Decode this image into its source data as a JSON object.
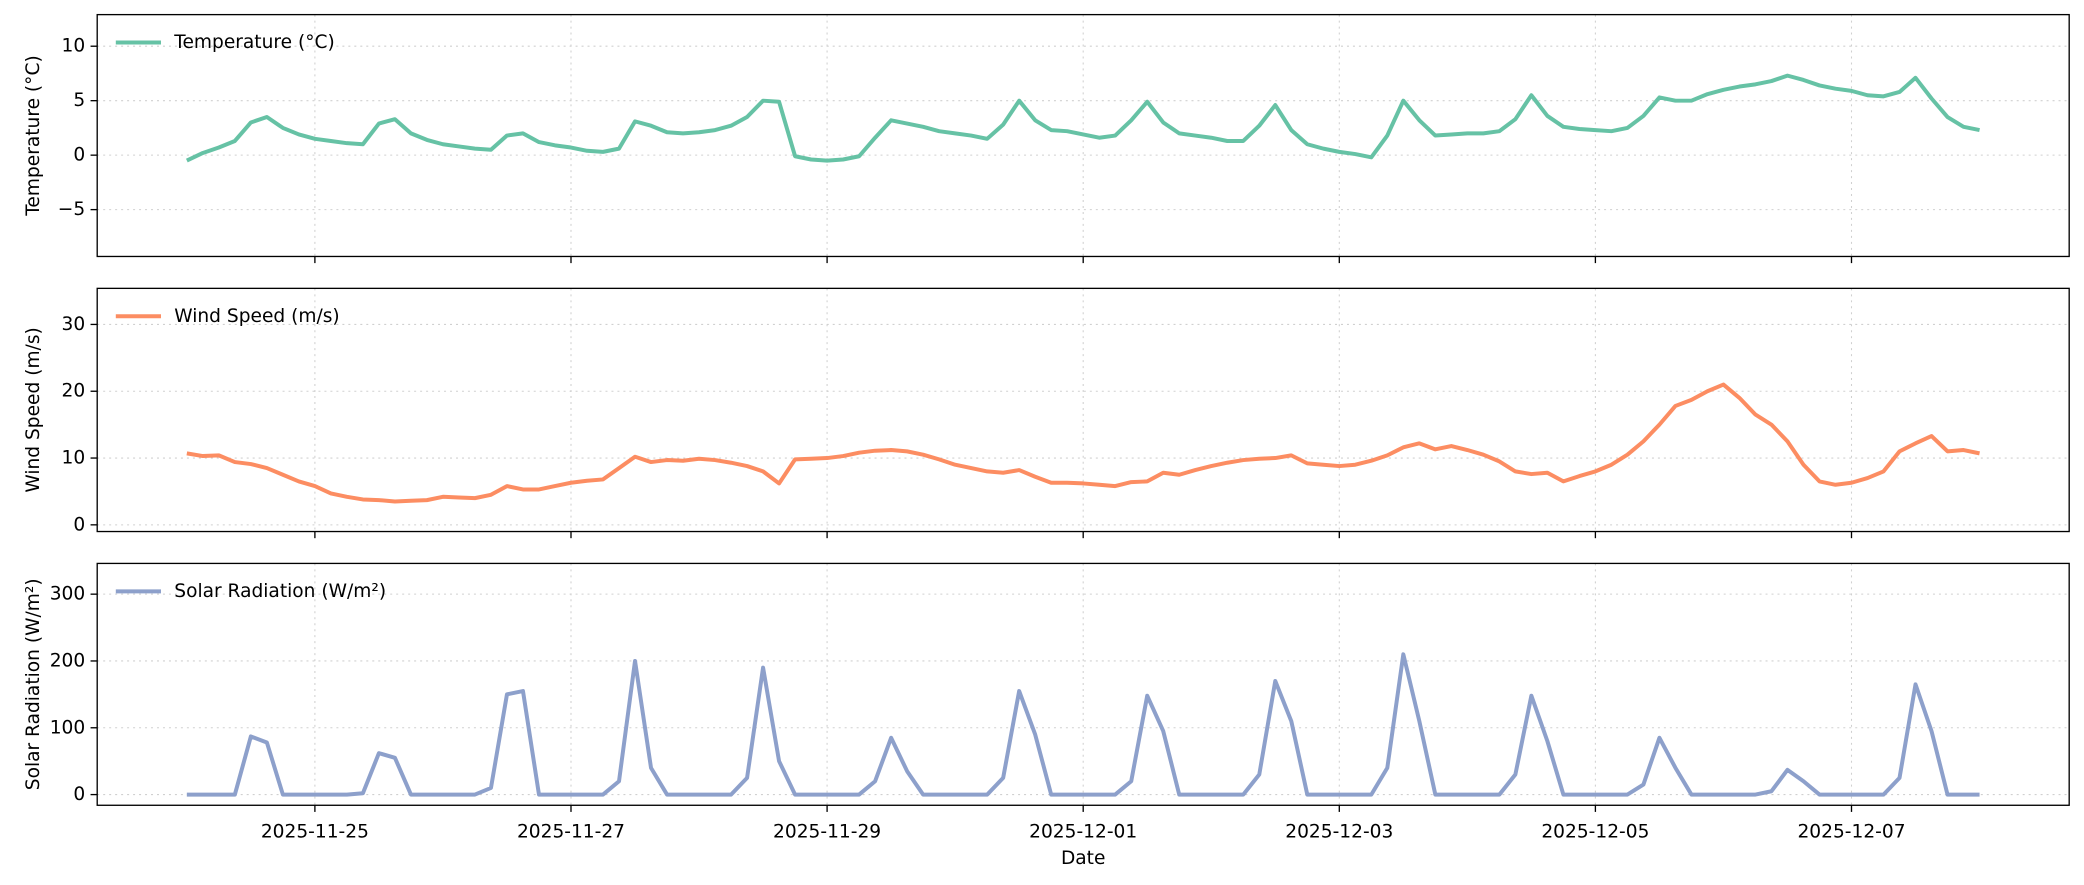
{
  "chart_data": [
    {
      "type": "line",
      "y_label": "Temperature (°C)",
      "legend": "upper left",
      "grid": true,
      "x": [
        "2025-11-24T00:00",
        "2025-11-24T03:00",
        "2025-11-24T06:00",
        "2025-11-24T09:00",
        "2025-11-24T12:00",
        "2025-11-24T15:00",
        "2025-11-24T18:00",
        "2025-11-24T21:00",
        "2025-11-25T00:00",
        "2025-11-25T03:00",
        "2025-11-25T06:00",
        "2025-11-25T09:00",
        "2025-11-25T12:00",
        "2025-11-25T15:00",
        "2025-11-25T18:00",
        "2025-11-25T21:00",
        "2025-11-26T00:00",
        "2025-11-26T03:00",
        "2025-11-26T06:00",
        "2025-11-26T09:00",
        "2025-11-26T12:00",
        "2025-11-26T15:00",
        "2025-11-26T18:00",
        "2025-11-26T21:00",
        "2025-11-27T00:00",
        "2025-11-27T03:00",
        "2025-11-27T06:00",
        "2025-11-27T09:00",
        "2025-11-27T12:00",
        "2025-11-27T15:00",
        "2025-11-27T18:00",
        "2025-11-27T21:00",
        "2025-11-28T00:00",
        "2025-11-28T03:00",
        "2025-11-28T06:00",
        "2025-11-28T09:00",
        "2025-11-28T12:00",
        "2025-11-28T15:00",
        "2025-11-28T18:00",
        "2025-11-28T21:00",
        "2025-11-29T00:00",
        "2025-11-29T03:00",
        "2025-11-29T06:00",
        "2025-11-29T09:00",
        "2025-11-29T12:00",
        "2025-11-29T15:00",
        "2025-11-29T18:00",
        "2025-11-29T21:00",
        "2025-11-30T00:00",
        "2025-11-30T03:00",
        "2025-11-30T06:00",
        "2025-11-30T09:00",
        "2025-11-30T12:00",
        "2025-11-30T15:00",
        "2025-11-30T18:00",
        "2025-11-30T21:00",
        "2025-12-01T00:00",
        "2025-12-01T03:00",
        "2025-12-01T06:00",
        "2025-12-01T09:00",
        "2025-12-01T12:00",
        "2025-12-01T15:00",
        "2025-12-01T18:00",
        "2025-12-01T21:00",
        "2025-12-02T00:00",
        "2025-12-02T03:00",
        "2025-12-02T06:00",
        "2025-12-02T09:00",
        "2025-12-02T12:00",
        "2025-12-02T15:00",
        "2025-12-02T18:00",
        "2025-12-02T21:00",
        "2025-12-03T00:00",
        "2025-12-03T03:00",
        "2025-12-03T06:00",
        "2025-12-03T09:00",
        "2025-12-03T12:00",
        "2025-12-03T15:00",
        "2025-12-03T18:00",
        "2025-12-03T21:00",
        "2025-12-04T00:00",
        "2025-12-04T03:00",
        "2025-12-04T06:00",
        "2025-12-04T09:00",
        "2025-12-04T12:00",
        "2025-12-04T15:00",
        "2025-12-04T18:00",
        "2025-12-04T21:00",
        "2025-12-05T00:00",
        "2025-12-05T03:00",
        "2025-12-05T06:00",
        "2025-12-05T09:00",
        "2025-12-05T12:00",
        "2025-12-05T15:00",
        "2025-12-05T18:00",
        "2025-12-05T21:00",
        "2025-12-06T00:00",
        "2025-12-06T03:00",
        "2025-12-06T06:00",
        "2025-12-06T09:00",
        "2025-12-06T12:00",
        "2025-12-06T15:00",
        "2025-12-06T18:00",
        "2025-12-06T21:00",
        "2025-12-07T00:00",
        "2025-12-07T03:00",
        "2025-12-07T06:00",
        "2025-12-07T09:00",
        "2025-12-07T12:00",
        "2025-12-07T15:00",
        "2025-12-07T18:00",
        "2025-12-07T21:00",
        "2025-12-08T00:00"
      ],
      "xlim": [
        "2025-11-23T07:12",
        "2025-12-08T16:48"
      ],
      "xticks": [
        "2025-11-25",
        "2025-11-27",
        "2025-11-29",
        "2025-12-01",
        "2025-12-03",
        "2025-12-05",
        "2025-12-07"
      ],
      "ylim": [
        -9.3,
        12.9
      ],
      "yticks": [
        {
          "value": -5,
          "label": "−5"
        },
        0,
        5,
        10
      ],
      "series": [
        {
          "name": "Temperature (°C)",
          "color": "#66c2a5",
          "values": [
            -0.5,
            0.2,
            0.7,
            1.3,
            3.0,
            3.5,
            2.5,
            1.9,
            1.5,
            1.3,
            1.1,
            1.0,
            2.9,
            3.3,
            2.0,
            1.4,
            1.0,
            0.8,
            0.6,
            0.5,
            1.8,
            2.0,
            1.2,
            0.9,
            0.7,
            0.4,
            0.3,
            0.6,
            3.1,
            2.7,
            2.1,
            2.0,
            2.1,
            2.3,
            2.7,
            3.5,
            5.0,
            4.9,
            -0.1,
            -0.4,
            -0.5,
            -0.4,
            -0.1,
            1.6,
            3.2,
            2.9,
            2.6,
            2.2,
            2.0,
            1.8,
            1.5,
            2.8,
            5.0,
            3.2,
            2.3,
            2.2,
            1.9,
            1.6,
            1.8,
            3.2,
            4.9,
            3.0,
            2.0,
            1.8,
            1.6,
            1.3,
            1.3,
            2.7,
            4.6,
            2.3,
            1.0,
            0.6,
            0.3,
            0.1,
            -0.2,
            1.8,
            5.0,
            3.2,
            1.8,
            1.9,
            2.0,
            2.0,
            2.2,
            3.3,
            5.5,
            3.6,
            2.6,
            2.4,
            2.3,
            2.2,
            2.5,
            3.6,
            5.3,
            5.0,
            5.0,
            5.6,
            6.0,
            6.3,
            6.5,
            6.8,
            7.3,
            6.9,
            6.4,
            6.1,
            5.9,
            5.5,
            5.4,
            5.8,
            7.1,
            5.2,
            3.5,
            2.6,
            2.3
          ]
        }
      ]
    },
    {
      "type": "line",
      "y_label": "Wind Speed (m/s)",
      "legend": "upper left",
      "grid": true,
      "x": [
        "2025-11-24T00:00",
        "2025-11-24T03:00",
        "2025-11-24T06:00",
        "2025-11-24T09:00",
        "2025-11-24T12:00",
        "2025-11-24T15:00",
        "2025-11-24T18:00",
        "2025-11-24T21:00",
        "2025-11-25T00:00",
        "2025-11-25T03:00",
        "2025-11-25T06:00",
        "2025-11-25T09:00",
        "2025-11-25T12:00",
        "2025-11-25T15:00",
        "2025-11-25T18:00",
        "2025-11-25T21:00",
        "2025-11-26T00:00",
        "2025-11-26T03:00",
        "2025-11-26T06:00",
        "2025-11-26T09:00",
        "2025-11-26T12:00",
        "2025-11-26T15:00",
        "2025-11-26T18:00",
        "2025-11-26T21:00",
        "2025-11-27T00:00",
        "2025-11-27T03:00",
        "2025-11-27T06:00",
        "2025-11-27T09:00",
        "2025-11-27T12:00",
        "2025-11-27T15:00",
        "2025-11-27T18:00",
        "2025-11-27T21:00",
        "2025-11-28T00:00",
        "2025-11-28T03:00",
        "2025-11-28T06:00",
        "2025-11-28T09:00",
        "2025-11-28T12:00",
        "2025-11-28T15:00",
        "2025-11-28T18:00",
        "2025-11-28T21:00",
        "2025-11-29T00:00",
        "2025-11-29T03:00",
        "2025-11-29T06:00",
        "2025-11-29T09:00",
        "2025-11-29T12:00",
        "2025-11-29T15:00",
        "2025-11-29T18:00",
        "2025-11-29T21:00",
        "2025-11-30T00:00",
        "2025-11-30T03:00",
        "2025-11-30T06:00",
        "2025-11-30T09:00",
        "2025-11-30T12:00",
        "2025-11-30T15:00",
        "2025-11-30T18:00",
        "2025-11-30T21:00",
        "2025-12-01T00:00",
        "2025-12-01T03:00",
        "2025-12-01T06:00",
        "2025-12-01T09:00",
        "2025-12-01T12:00",
        "2025-12-01T15:00",
        "2025-12-01T18:00",
        "2025-12-01T21:00",
        "2025-12-02T00:00",
        "2025-12-02T03:00",
        "2025-12-02T06:00",
        "2025-12-02T09:00",
        "2025-12-02T12:00",
        "2025-12-02T15:00",
        "2025-12-02T18:00",
        "2025-12-02T21:00",
        "2025-12-03T00:00",
        "2025-12-03T03:00",
        "2025-12-03T06:00",
        "2025-12-03T09:00",
        "2025-12-03T12:00",
        "2025-12-03T15:00",
        "2025-12-03T18:00",
        "2025-12-03T21:00",
        "2025-12-04T00:00",
        "2025-12-04T03:00",
        "2025-12-04T06:00",
        "2025-12-04T09:00",
        "2025-12-04T12:00",
        "2025-12-04T15:00",
        "2025-12-04T18:00",
        "2025-12-04T21:00",
        "2025-12-05T00:00",
        "2025-12-05T03:00",
        "2025-12-05T06:00",
        "2025-12-05T09:00",
        "2025-12-05T12:00",
        "2025-12-05T15:00",
        "2025-12-05T18:00",
        "2025-12-05T21:00",
        "2025-12-06T00:00",
        "2025-12-06T03:00",
        "2025-12-06T06:00",
        "2025-12-06T09:00",
        "2025-12-06T12:00",
        "2025-12-06T15:00",
        "2025-12-06T18:00",
        "2025-12-06T21:00",
        "2025-12-07T00:00",
        "2025-12-07T03:00",
        "2025-12-07T06:00",
        "2025-12-07T09:00",
        "2025-12-07T12:00",
        "2025-12-07T15:00",
        "2025-12-07T18:00",
        "2025-12-07T21:00",
        "2025-12-08T00:00"
      ],
      "xlim": [
        "2025-11-23T07:12",
        "2025-12-08T16:48"
      ],
      "xticks": [
        "2025-11-25",
        "2025-11-27",
        "2025-11-29",
        "2025-12-01",
        "2025-12-03",
        "2025-12-05",
        "2025-12-07"
      ],
      "ylim": [
        -1.0,
        35.4
      ],
      "yticks": [
        0,
        10,
        20,
        30
      ],
      "series": [
        {
          "name": "Wind Speed (m/s)",
          "color": "#fc8d62",
          "values": [
            10.7,
            10.3,
            10.4,
            9.4,
            9.1,
            8.5,
            7.5,
            6.5,
            5.8,
            4.7,
            4.2,
            3.8,
            3.7,
            3.5,
            3.6,
            3.7,
            4.2,
            4.1,
            4.0,
            4.5,
            5.8,
            5.3,
            5.3,
            5.8,
            6.3,
            6.6,
            6.8,
            8.5,
            10.2,
            9.4,
            9.7,
            9.6,
            9.9,
            9.7,
            9.3,
            8.8,
            8.0,
            6.2,
            9.8,
            9.9,
            10.0,
            10.3,
            10.8,
            11.1,
            11.2,
            11.0,
            10.5,
            9.8,
            9.0,
            8.5,
            8.0,
            7.8,
            8.2,
            7.2,
            6.3,
            6.3,
            6.2,
            6.0,
            5.8,
            6.4,
            6.5,
            7.8,
            7.5,
            8.2,
            8.8,
            9.3,
            9.7,
            9.9,
            10.0,
            10.4,
            9.2,
            9.0,
            8.8,
            9.0,
            9.6,
            10.4,
            11.6,
            12.2,
            11.3,
            11.8,
            11.2,
            10.5,
            9.5,
            8.0,
            7.6,
            7.8,
            6.5,
            7.3,
            8.0,
            9.0,
            10.5,
            12.5,
            15.0,
            17.8,
            18.7,
            20.0,
            21.0,
            19.0,
            16.5,
            15.0,
            12.5,
            9.0,
            6.5,
            6.0,
            6.3,
            7.0,
            8.0,
            11.0,
            12.2,
            13.3,
            11.0,
            11.2,
            10.7
          ]
        }
      ]
    },
    {
      "type": "line",
      "y_label": "Solar Radiation (W/m²)",
      "x_label": "Date",
      "legend": "upper left",
      "grid": true,
      "x": [
        "2025-11-24T00:00",
        "2025-11-24T03:00",
        "2025-11-24T06:00",
        "2025-11-24T09:00",
        "2025-11-24T12:00",
        "2025-11-24T15:00",
        "2025-11-24T18:00",
        "2025-11-24T21:00",
        "2025-11-25T00:00",
        "2025-11-25T03:00",
        "2025-11-25T06:00",
        "2025-11-25T09:00",
        "2025-11-25T12:00",
        "2025-11-25T15:00",
        "2025-11-25T18:00",
        "2025-11-25T21:00",
        "2025-11-26T00:00",
        "2025-11-26T03:00",
        "2025-11-26T06:00",
        "2025-11-26T09:00",
        "2025-11-26T12:00",
        "2025-11-26T15:00",
        "2025-11-26T18:00",
        "2025-11-26T21:00",
        "2025-11-27T00:00",
        "2025-11-27T03:00",
        "2025-11-27T06:00",
        "2025-11-27T09:00",
        "2025-11-27T12:00",
        "2025-11-27T15:00",
        "2025-11-27T18:00",
        "2025-11-27T21:00",
        "2025-11-28T00:00",
        "2025-11-28T03:00",
        "2025-11-28T06:00",
        "2025-11-28T09:00",
        "2025-11-28T12:00",
        "2025-11-28T15:00",
        "2025-11-28T18:00",
        "2025-11-28T21:00",
        "2025-11-29T00:00",
        "2025-11-29T03:00",
        "2025-11-29T06:00",
        "2025-11-29T09:00",
        "2025-11-29T12:00",
        "2025-11-29T15:00",
        "2025-11-29T18:00",
        "2025-11-29T21:00",
        "2025-11-30T00:00",
        "2025-11-30T03:00",
        "2025-11-30T06:00",
        "2025-11-30T09:00",
        "2025-11-30T12:00",
        "2025-11-30T15:00",
        "2025-11-30T18:00",
        "2025-11-30T21:00",
        "2025-12-01T00:00",
        "2025-12-01T03:00",
        "2025-12-01T06:00",
        "2025-12-01T09:00",
        "2025-12-01T12:00",
        "2025-12-01T15:00",
        "2025-12-01T18:00",
        "2025-12-01T21:00",
        "2025-12-02T00:00",
        "2025-12-02T03:00",
        "2025-12-02T06:00",
        "2025-12-02T09:00",
        "2025-12-02T12:00",
        "2025-12-02T15:00",
        "2025-12-02T18:00",
        "2025-12-02T21:00",
        "2025-12-03T00:00",
        "2025-12-03T03:00",
        "2025-12-03T06:00",
        "2025-12-03T09:00",
        "2025-12-03T12:00",
        "2025-12-03T15:00",
        "2025-12-03T18:00",
        "2025-12-03T21:00",
        "2025-12-04T00:00",
        "2025-12-04T03:00",
        "2025-12-04T06:00",
        "2025-12-04T09:00",
        "2025-12-04T12:00",
        "2025-12-04T15:00",
        "2025-12-04T18:00",
        "2025-12-04T21:00",
        "2025-12-05T00:00",
        "2025-12-05T03:00",
        "2025-12-05T06:00",
        "2025-12-05T09:00",
        "2025-12-05T12:00",
        "2025-12-05T15:00",
        "2025-12-05T18:00",
        "2025-12-05T21:00",
        "2025-12-06T00:00",
        "2025-12-06T03:00",
        "2025-12-06T06:00",
        "2025-12-06T09:00",
        "2025-12-06T12:00",
        "2025-12-06T15:00",
        "2025-12-06T18:00",
        "2025-12-06T21:00",
        "2025-12-07T00:00",
        "2025-12-07T03:00",
        "2025-12-07T06:00",
        "2025-12-07T09:00",
        "2025-12-07T12:00",
        "2025-12-07T15:00",
        "2025-12-07T18:00",
        "2025-12-07T21:00",
        "2025-12-08T00:00"
      ],
      "xlim": [
        "2025-11-23T07:12",
        "2025-12-08T16:48"
      ],
      "xticks": [
        "2025-11-25",
        "2025-11-27",
        "2025-11-29",
        "2025-12-01",
        "2025-12-03",
        "2025-12-05",
        "2025-12-07"
      ],
      "ylim": [
        -16,
        346
      ],
      "yticks": [
        0,
        100,
        200,
        300
      ],
      "series": [
        {
          "name": "Solar Radiation (W/m²)",
          "color": "#8da0cb",
          "values": [
            0,
            0,
            0,
            0,
            87,
            78,
            0,
            0,
            0,
            0,
            0,
            2,
            62,
            55,
            0,
            0,
            0,
            0,
            0,
            10,
            150,
            155,
            0,
            0,
            0,
            0,
            0,
            20,
            200,
            40,
            0,
            0,
            0,
            0,
            0,
            25,
            190,
            50,
            0,
            0,
            0,
            0,
            0,
            20,
            85,
            35,
            0,
            0,
            0,
            0,
            0,
            25,
            155,
            90,
            0,
            0,
            0,
            0,
            0,
            20,
            148,
            95,
            0,
            0,
            0,
            0,
            0,
            30,
            170,
            110,
            0,
            0,
            0,
            0,
            0,
            40,
            210,
            110,
            0,
            0,
            0,
            0,
            0,
            30,
            148,
            80,
            0,
            0,
            0,
            0,
            0,
            15,
            85,
            40,
            0,
            0,
            0,
            0,
            0,
            5,
            37,
            20,
            0,
            0,
            0,
            0,
            0,
            25,
            165,
            95,
            0,
            0,
            0
          ]
        }
      ]
    }
  ]
}
